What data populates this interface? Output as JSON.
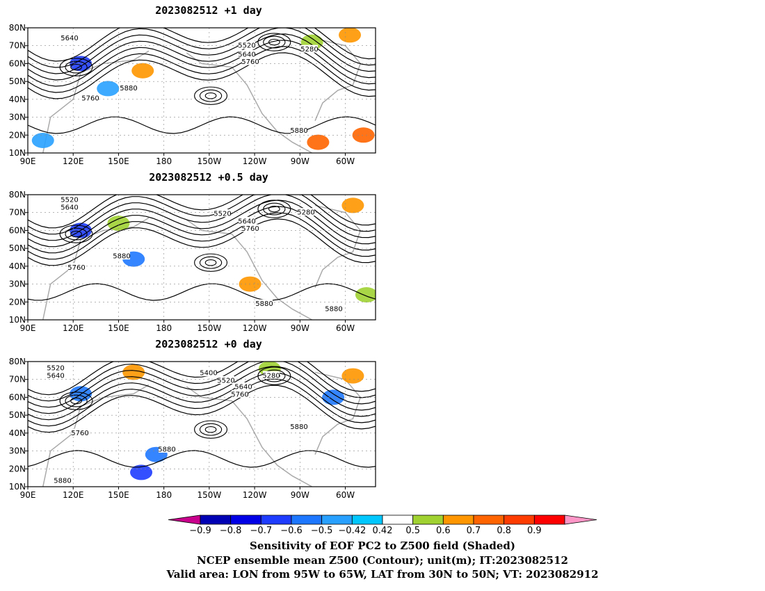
{
  "chart_data": [
    {
      "type": "heatmap",
      "title": "2023082512  +1 day",
      "x_ticks": [
        "90E",
        "120E",
        "150E",
        "180",
        "150W",
        "120W",
        "90W",
        "60W"
      ],
      "y_ticks": [
        "10N",
        "20N",
        "30N",
        "40N",
        "50N",
        "60N",
        "70N",
        "80N"
      ],
      "xlim_deg_east": [
        90,
        320
      ],
      "ylim_deg_north": [
        10,
        80
      ],
      "grid": true,
      "contour_labels": [
        "5640",
        "5520",
        "5280",
        "5640",
        "5760",
        "5760",
        "5880",
        "5880"
      ],
      "shaded_regions": [
        {
          "lon": 125,
          "lat": 60,
          "value": -0.7
        },
        {
          "lon": 143,
          "lat": 46,
          "value": -0.5
        },
        {
          "lon": 100,
          "lat": 17,
          "value": -0.5
        },
        {
          "lon": 282,
          "lat": 16,
          "value": 0.7
        },
        {
          "lon": 312,
          "lat": 20,
          "value": 0.7
        },
        {
          "lon": 303,
          "lat": 76,
          "value": 0.6
        },
        {
          "lon": 278,
          "lat": 72,
          "value": 0.5
        },
        {
          "lon": 166,
          "lat": 56,
          "value": 0.6
        }
      ]
    },
    {
      "type": "heatmap",
      "title": "2023082512  +0.5 day",
      "x_ticks": [
        "90E",
        "120E",
        "150E",
        "180",
        "150W",
        "120W",
        "90W",
        "60W"
      ],
      "y_ticks": [
        "10N",
        "20N",
        "30N",
        "40N",
        "50N",
        "60N",
        "70N",
        "80N"
      ],
      "xlim_deg_east": [
        90,
        320
      ],
      "ylim_deg_north": [
        10,
        80
      ],
      "grid": true,
      "contour_labels": [
        "5520",
        "5640",
        "5520",
        "5280",
        "5640",
        "5760",
        "5760",
        "5880",
        "5880",
        "5880"
      ],
      "shaded_regions": [
        {
          "lon": 125,
          "lat": 60,
          "value": -0.7
        },
        {
          "lon": 160,
          "lat": 44,
          "value": -0.6
        },
        {
          "lon": 150,
          "lat": 64,
          "value": 0.5
        },
        {
          "lon": 305,
          "lat": 74,
          "value": 0.6
        },
        {
          "lon": 314,
          "lat": 24,
          "value": 0.5
        },
        {
          "lon": 237,
          "lat": 30,
          "value": 0.6
        }
      ]
    },
    {
      "type": "heatmap",
      "title": "2023082512  +0 day",
      "x_ticks": [
        "90E",
        "120E",
        "150E",
        "180",
        "150W",
        "120W",
        "90W",
        "60W"
      ],
      "y_ticks": [
        "10N",
        "20N",
        "30N",
        "40N",
        "50N",
        "60N",
        "70N",
        "80N"
      ],
      "xlim_deg_east": [
        90,
        320
      ],
      "ylim_deg_north": [
        10,
        80
      ],
      "grid": true,
      "contour_labels": [
        "5520",
        "5640",
        "5400",
        "5520",
        "5280",
        "5640",
        "5760",
        "5760",
        "5880",
        "5880",
        "5880"
      ],
      "shaded_regions": [
        {
          "lon": 165,
          "lat": 18,
          "value": -0.7
        },
        {
          "lon": 175,
          "lat": 28,
          "value": -0.6
        },
        {
          "lon": 125,
          "lat": 62,
          "value": -0.6
        },
        {
          "lon": 160,
          "lat": 74,
          "value": 0.6
        },
        {
          "lon": 292,
          "lat": 60,
          "value": -0.6
        },
        {
          "lon": 305,
          "lat": 72,
          "value": 0.6
        },
        {
          "lon": 250,
          "lat": 76,
          "value": 0.5
        }
      ]
    }
  ],
  "colorbar": {
    "tick_labels": [
      "−0.9",
      "−0.8",
      "−0.7",
      "−0.6",
      "−0.5",
      "−0.42",
      "0.42",
      "0.5",
      "0.6",
      "0.7",
      "0.8",
      "0.9"
    ],
    "colors": [
      "#c8008c",
      "#0000b4",
      "#0000e6",
      "#1e3cff",
      "#1e78ff",
      "#28a0ff",
      "#00c8ff",
      "#ffffff",
      "#a0d232",
      "#ff9600",
      "#ff6400",
      "#ff3c00",
      "#ff0000",
      "#ff96c8"
    ]
  },
  "colors": {
    "contour": "#000000",
    "coastline": "#aaaaaa",
    "grid": "#888888"
  },
  "caption_lines": [
    "Sensitivity of EOF PC2 to Z500 field (Shaded)",
    "NCEP ensemble mean Z500 (Contour); unit(m); IT:2023082512",
    "Valid area: LON from 95W to 65W, LAT from 30N to 50N; VT: 2023082912"
  ]
}
